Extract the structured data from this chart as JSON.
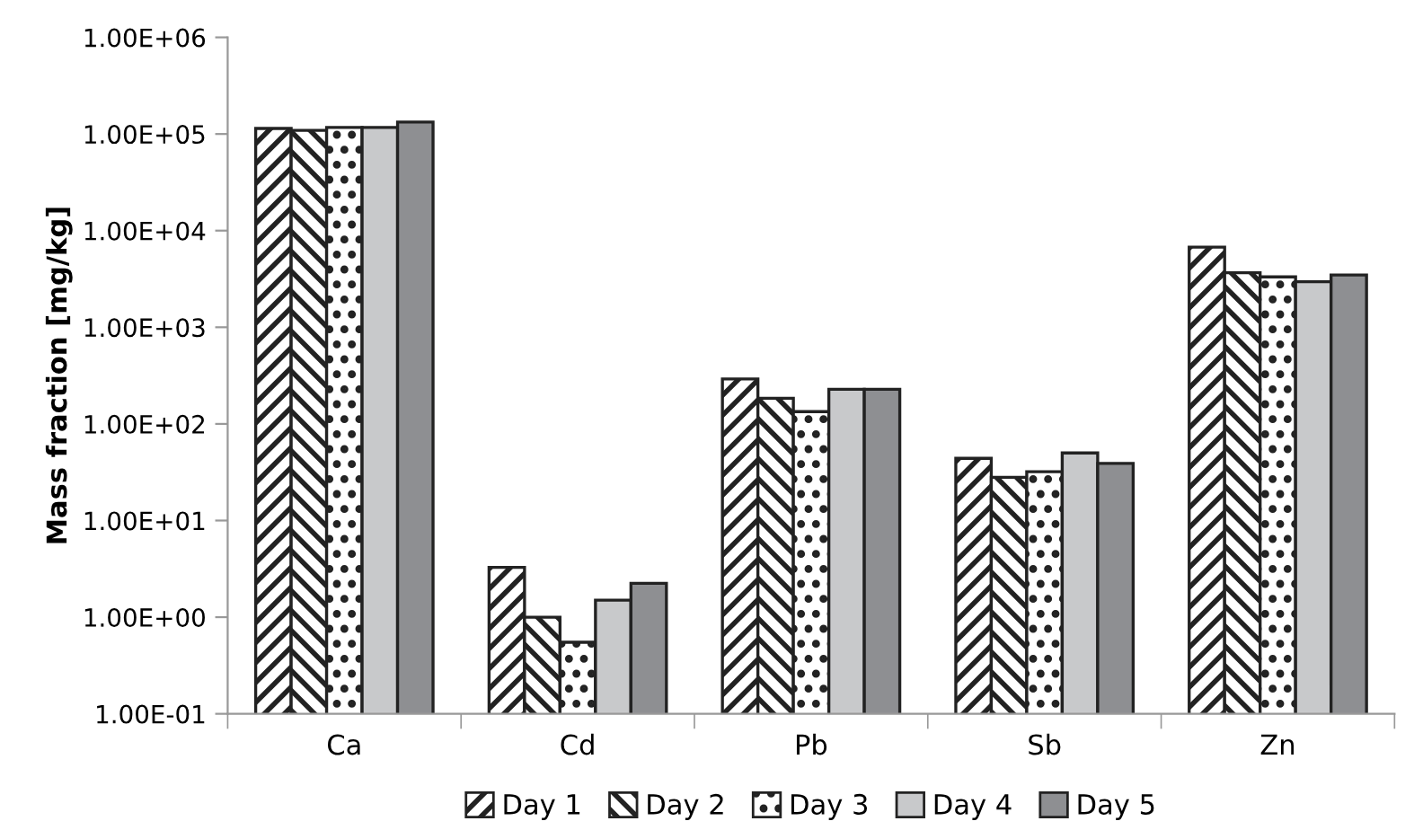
{
  "chart_data": {
    "type": "bar",
    "ylabel": "Mass fraction [mg/kg]",
    "categories": [
      "Ca",
      "Cd",
      "Pb",
      "Sb",
      "Zn"
    ],
    "series": [
      {
        "name": "Day 1",
        "color": "#ffffff",
        "values": [
          114000,
          3.27,
          292,
          44,
          6740
        ]
      },
      {
        "name": "Day 2",
        "color": "#ffffff",
        "values": [
          109000,
          1.0,
          184,
          28,
          3670
        ]
      },
      {
        "name": "Day 3",
        "color": "#ffffff",
        "values": [
          117000,
          0.55,
          134,
          32,
          3320
        ]
      },
      {
        "name": "Day 4",
        "color": "#c8c9cb",
        "values": [
          117000,
          1.5,
          228,
          50,
          2960
        ]
      },
      {
        "name": "Day 5",
        "color": "#8e8f92",
        "values": [
          133000,
          2.24,
          228,
          39,
          3470
        ]
      }
    ],
    "log": "y",
    "ylim": [
      0.1,
      1000000
    ],
    "yticks": [
      {
        "value": 0.1,
        "label": "1.00E-01"
      },
      {
        "value": 1,
        "label": "1.00E+00"
      },
      {
        "value": 10,
        "label": "1.00E+01"
      },
      {
        "value": 100,
        "label": "1.00E+02"
      },
      {
        "value": 1000,
        "label": "1.00E+03"
      },
      {
        "value": 10000,
        "label": "1.00E+04"
      },
      {
        "value": 100000,
        "label": "1.00E+05"
      },
      {
        "value": 1000000,
        "label": "1.00E+06"
      }
    ],
    "grid": false,
    "legend": "bottom"
  }
}
